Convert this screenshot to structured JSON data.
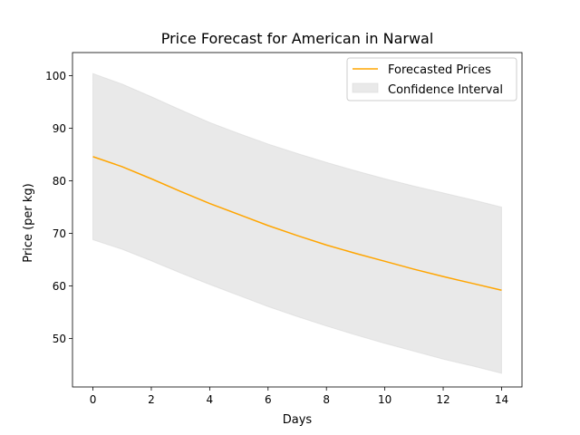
{
  "chart_data": {
    "type": "line",
    "title": "Price Forecast for American in Narwal",
    "xlabel": "Days",
    "ylabel": "Price (per kg)",
    "xlim": [
      -0.7,
      14.7
    ],
    "ylim": [
      40.8,
      104.4
    ],
    "xticks": [
      0,
      2,
      4,
      6,
      8,
      10,
      12,
      14
    ],
    "yticks": [
      50,
      60,
      70,
      80,
      90,
      100
    ],
    "legend_position": "top-right",
    "grid": false,
    "x": [
      0,
      1,
      2,
      3,
      4,
      5,
      6,
      7,
      8,
      9,
      10,
      11,
      12,
      13,
      14
    ],
    "series": [
      {
        "name": "Forecasted Prices",
        "color": "#ffa500",
        "values": [
          84.6,
          82.7,
          80.4,
          78.0,
          75.7,
          73.6,
          71.5,
          69.6,
          67.8,
          66.2,
          64.7,
          63.2,
          61.8,
          60.5,
          59.2
        ]
      }
    ],
    "confidence_interval": {
      "name": "Confidence Interval",
      "color": "#d3d3d3",
      "upper": [
        100.4,
        98.4,
        96.0,
        93.5,
        91.1,
        89.0,
        87.0,
        85.2,
        83.5,
        81.9,
        80.4,
        79.0,
        77.7,
        76.4,
        75.0
      ],
      "lower": [
        68.8,
        67.0,
        64.8,
        62.5,
        60.3,
        58.2,
        56.1,
        54.2,
        52.4,
        50.7,
        49.1,
        47.6,
        46.1,
        44.8,
        43.4
      ]
    }
  }
}
